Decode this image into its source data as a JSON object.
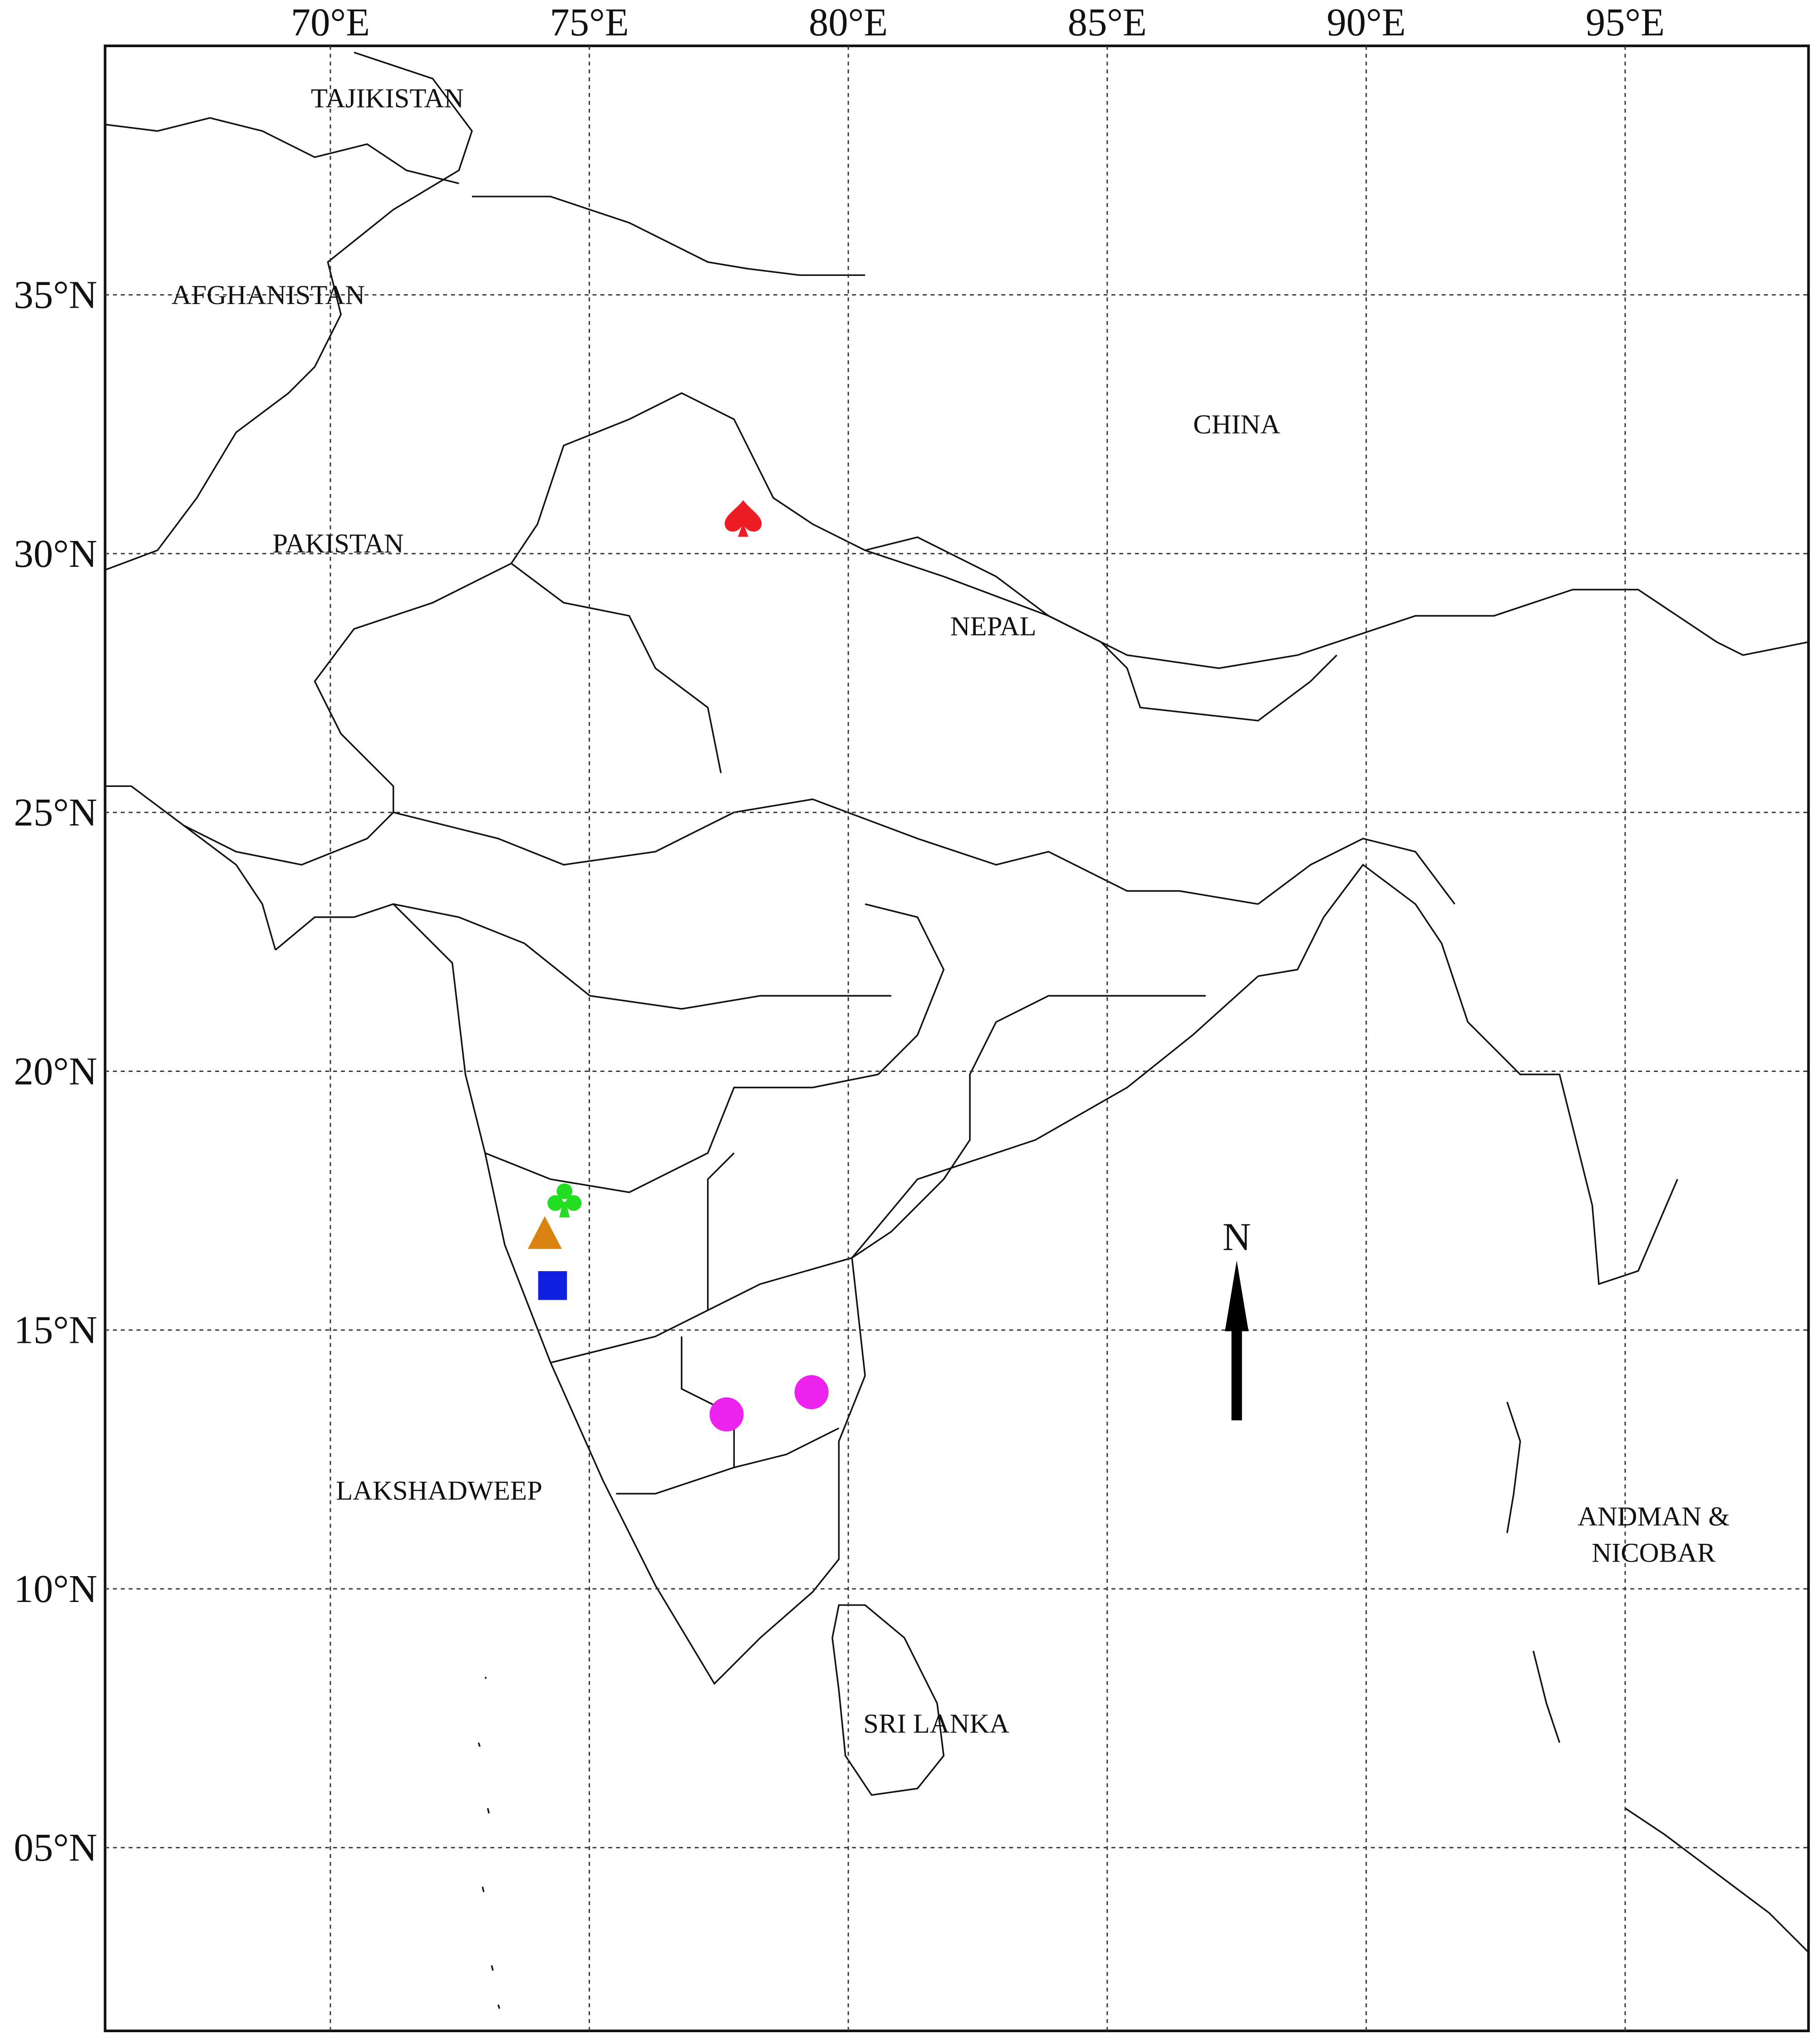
{
  "map": {
    "xlim": [
      65.65,
      98.54
    ],
    "ylim": [
      1.46,
      39.81
    ],
    "lon_ticks": [
      {
        "value": 70,
        "label": "70°E"
      },
      {
        "value": 75,
        "label": "75°E"
      },
      {
        "value": 80,
        "label": "80°E"
      },
      {
        "value": 85,
        "label": "85°E"
      },
      {
        "value": 90,
        "label": "90°E"
      },
      {
        "value": 95,
        "label": "95°E"
      }
    ],
    "lat_ticks": [
      {
        "value": 35,
        "label": "35°N"
      },
      {
        "value": 30,
        "label": "30°N"
      },
      {
        "value": 25,
        "label": "25°N"
      },
      {
        "value": 20,
        "label": "20°N"
      },
      {
        "value": 15,
        "label": "15°N"
      },
      {
        "value": 10,
        "label": "10°N"
      },
      {
        "value": 5,
        "label": "05°N"
      }
    ],
    "labels": [
      {
        "text": "TAJIKISTAN",
        "lon": 71.1,
        "lat": 38.8
      },
      {
        "text": "AFGHANISTAN",
        "lon": 68.8,
        "lat": 35.0
      },
      {
        "text": "CHINA",
        "lon": 87.5,
        "lat": 32.5
      },
      {
        "text": "PAKISTAN",
        "lon": 70.15,
        "lat": 30.2
      },
      {
        "text": "NEPAL",
        "lon": 82.8,
        "lat": 28.6
      },
      {
        "text": "LAKSHADWEEP",
        "lon": 72.1,
        "lat": 11.9
      },
      {
        "text": "ANDMAN &",
        "lon": 95.55,
        "lat": 11.4
      },
      {
        "text": "NICOBAR",
        "lon": 95.55,
        "lat": 10.7
      },
      {
        "text": "SRI LANKA",
        "lon": 81.7,
        "lat": 7.4
      }
    ],
    "markers": [
      {
        "shape": "spade",
        "color": "#ee1c25",
        "lon": 77.97,
        "lat": 30.68
      },
      {
        "shape": "club",
        "color": "#22dd22",
        "lon": 74.52,
        "lat": 17.53
      },
      {
        "shape": "triangle",
        "color": "#d9820f",
        "lon": 74.14,
        "lat": 16.82
      },
      {
        "shape": "square",
        "color": "#1020e0",
        "lon": 74.29,
        "lat": 15.86
      },
      {
        "shape": "circle",
        "color": "#ee22ee",
        "lon": 77.65,
        "lat": 13.37
      },
      {
        "shape": "circle",
        "color": "#ee22ee",
        "lon": 79.29,
        "lat": 13.8
      }
    ],
    "north_arrow": {
      "text": "N",
      "lon": 87.5,
      "lat": 16.8
    }
  }
}
